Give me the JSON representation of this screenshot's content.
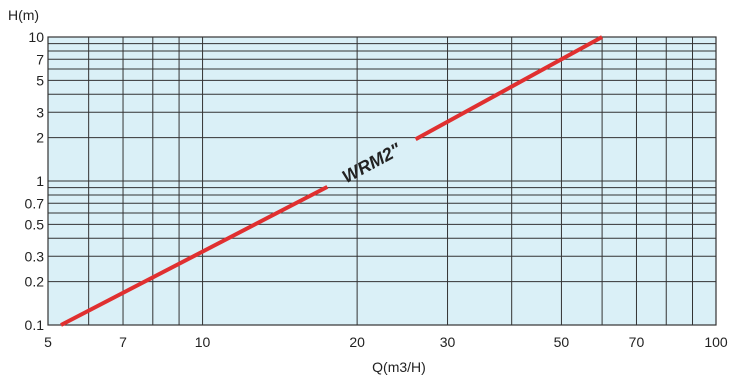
{
  "chart_data": {
    "type": "line",
    "x_scale": "log",
    "y_scale": "log",
    "xlabel": "Q(m3/H)",
    "ylabel": "H(m)",
    "xlim": [
      5,
      100
    ],
    "ylim": [
      0.1,
      10
    ],
    "x_gridlines": [
      5,
      6,
      7,
      8,
      9,
      10,
      20,
      30,
      40,
      50,
      60,
      70,
      80,
      90,
      100
    ],
    "y_gridlines": [
      0.1,
      0.2,
      0.3,
      0.4,
      0.5,
      0.6,
      0.7,
      0.8,
      0.9,
      1,
      2,
      3,
      4,
      5,
      6,
      7,
      8,
      9,
      10
    ],
    "x_tick_labels": [
      {
        "value": 5,
        "label": "5"
      },
      {
        "value": 7,
        "label": "7"
      },
      {
        "value": 10,
        "label": "10"
      },
      {
        "value": 20,
        "label": "20"
      },
      {
        "value": 30,
        "label": "30"
      },
      {
        "value": 50,
        "label": "50"
      },
      {
        "value": 70,
        "label": "70"
      },
      {
        "value": 100,
        "label": "100"
      }
    ],
    "y_tick_labels": [
      {
        "value": 0.1,
        "label": "0.1"
      },
      {
        "value": 0.2,
        "label": "0.2"
      },
      {
        "value": 0.3,
        "label": "0.3"
      },
      {
        "value": 0.5,
        "label": "0.5"
      },
      {
        "value": 0.7,
        "label": "0.7"
      },
      {
        "value": 1,
        "label": "1"
      },
      {
        "value": 2,
        "label": "2"
      },
      {
        "value": 3,
        "label": "3"
      },
      {
        "value": 5,
        "label": "5"
      },
      {
        "value": 7,
        "label": "7"
      },
      {
        "value": 10,
        "label": "10"
      }
    ],
    "grid": true,
    "series": [
      {
        "name": "WRM2\"",
        "color": "#e03030",
        "segments": [
          [
            [
              5.3,
              0.1
            ],
            [
              17.5,
              0.91
            ]
          ],
          [
            [
              26,
              1.95
            ],
            [
              60,
              10
            ]
          ]
        ]
      }
    ],
    "colors": {
      "plot_background": "#daf0f7",
      "grid": "#333333",
      "series": "#e03030"
    }
  }
}
